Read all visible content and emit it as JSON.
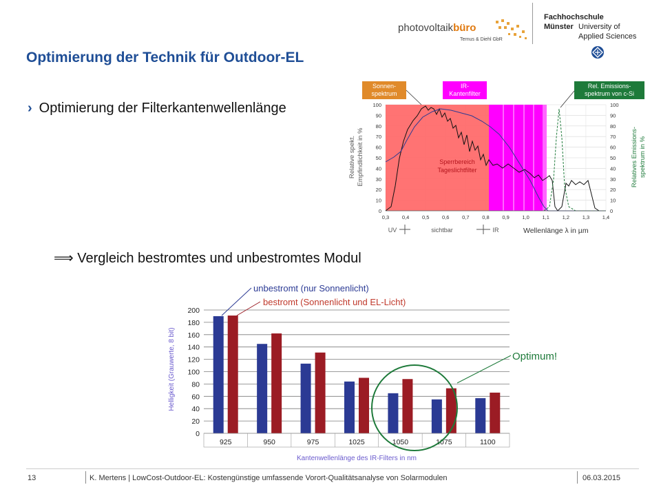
{
  "header": {
    "pv_logo_main": "photovoltaik",
    "pv_logo_accent": "büro",
    "pv_logo_sub": "Ternus & Diehl GbR",
    "fh_line1": "Fachhochschule",
    "fh_line2": "Münster",
    "fh_line3": "University of",
    "fh_line4": "Applied Sciences"
  },
  "title": "Optimierung der Technik für Outdoor-EL",
  "bullet1": "Optimierung der Filterkantenwellenlänge",
  "bullet2": "⟹ Vergleich bestromtes und unbestromtes Modul",
  "spectrum_chart": {
    "callout_sun": [
      "Sonnen-",
      "spektrum"
    ],
    "callout_ir": [
      "IR-",
      "Kantenfilter"
    ],
    "callout_em": [
      "Rel. Emissions-",
      "spektrum von c-Si"
    ],
    "block_label": [
      "Sperrbereich",
      "Tageslichtfilter"
    ],
    "ylabel_left": [
      "Relative spekt.",
      "Empfindlichkeit in %"
    ],
    "ylabel_right": [
      "Relatives Emissions-",
      "spektrum in %"
    ],
    "xlabel": "Wellenlänge λ in µm",
    "band_uv": "UV",
    "band_vis": "sichtbar",
    "band_ir": "IR",
    "colors": {
      "sun": "#e08a2a",
      "ir": "#ff00ff",
      "em": "#1e7a3a",
      "block": "#ff6b6b"
    }
  },
  "chart_data": [
    {
      "type": "line",
      "x": [
        0.3,
        0.4,
        0.5,
        0.6,
        0.7,
        0.8,
        0.9,
        1.0,
        1.1,
        1.2,
        1.3,
        1.4
      ],
      "xlim": [
        0.3,
        1.4
      ],
      "ylim": [
        0,
        100
      ],
      "y_ticks": [
        0,
        10,
        20,
        30,
        40,
        50,
        60,
        70,
        80,
        90,
        100
      ],
      "x_ticks": [
        "0,3",
        "0,4",
        "0,5",
        "0,6",
        "0,7",
        "0,8",
        "0,9",
        "1,0",
        "1,1",
        "1,2",
        "1,3",
        "1,4"
      ],
      "xlabel": "Wellenlänge λ in µm",
      "grid": true
    },
    {
      "type": "bar",
      "categories": [
        "925",
        "950",
        "975",
        "1025",
        "1050",
        "1075",
        "1100"
      ],
      "series": [
        {
          "name": "unbestromt (nur Sonnenlicht)",
          "values": [
            190,
            145,
            113,
            84,
            65,
            55,
            57
          ],
          "color": "#2b3a94"
        },
        {
          "name": "bestromt (Sonnenlicht und EL-Licht)",
          "values": [
            191,
            162,
            131,
            90,
            88,
            73,
            66
          ],
          "color": "#9b1c24"
        }
      ],
      "ylim": [
        0,
        200
      ],
      "y_ticks": [
        0,
        20,
        40,
        60,
        80,
        100,
        120,
        140,
        160,
        180,
        200
      ],
      "xlabel": "Kantenwellenlänge des IR-Filters in nm",
      "ylabel": "Helligkeit (Grauwerte, 8 bit)",
      "annotation": "Optimum!",
      "grid": true
    }
  ],
  "footer": {
    "page": "13",
    "text": "K. Mertens  |  LowCost-Outdoor-EL: Kostengünstige umfassende Vorort-Qualitätsanalyse von Solarmodulen",
    "date": "06.03.2015"
  }
}
